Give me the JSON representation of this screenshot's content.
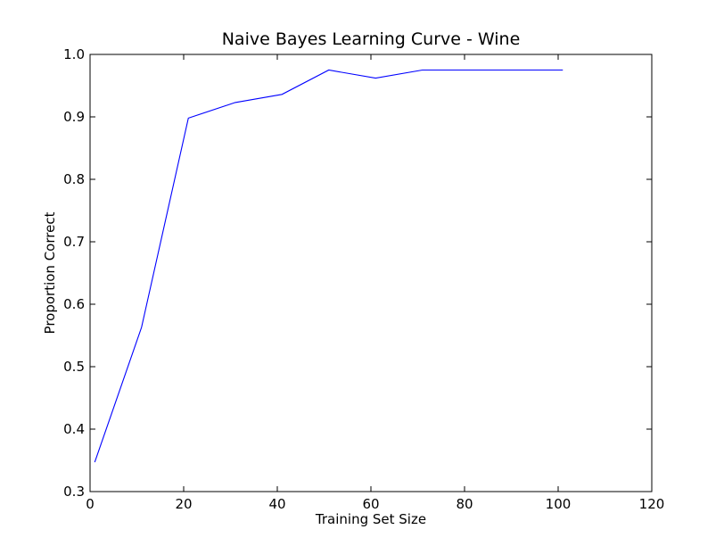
{
  "chart_data": {
    "type": "line",
    "title": "Naive Bayes Learning Curve - Wine",
    "xlabel": "Training Set Size",
    "ylabel": "Proportion Correct",
    "xlim": [
      0,
      120
    ],
    "ylim": [
      0.3,
      1.0
    ],
    "xticks": [
      0,
      20,
      40,
      60,
      80,
      100,
      120
    ],
    "yticks": [
      0.3,
      0.4,
      0.5,
      0.6,
      0.7,
      0.8,
      0.9,
      1.0
    ],
    "xtick_labels": [
      "0",
      "20",
      "40",
      "60",
      "80",
      "100",
      "120"
    ],
    "ytick_labels": [
      "0.3",
      "0.4",
      "0.5",
      "0.6",
      "0.7",
      "0.8",
      "0.9",
      "1.0"
    ],
    "grid": false,
    "series": [
      {
        "color": "#0000ff",
        "x": [
          1,
          11,
          21,
          31,
          41,
          51,
          61,
          71,
          81,
          91,
          101
        ],
        "y": [
          0.347,
          0.563,
          0.898,
          0.923,
          0.936,
          0.975,
          0.962,
          0.975,
          0.975,
          0.975,
          0.975
        ]
      }
    ]
  }
}
